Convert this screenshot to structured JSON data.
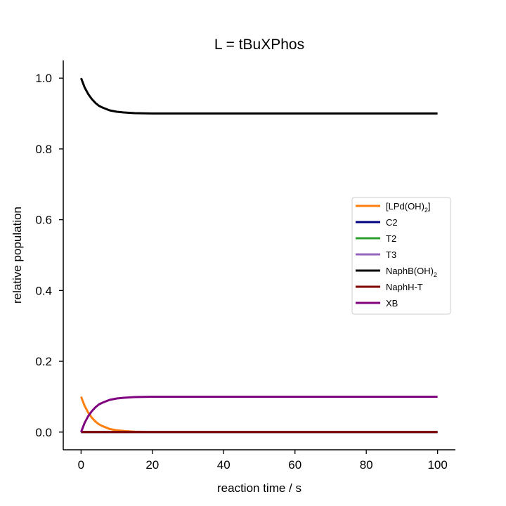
{
  "chart_data": {
    "type": "line",
    "title": "L = tBuXPhos",
    "xlabel": "reaction time / s",
    "ylabel": "relative population",
    "xlim": [
      -5,
      105
    ],
    "ylim": [
      -0.05,
      1.05
    ],
    "xticks": [
      0,
      20,
      40,
      60,
      80,
      100
    ],
    "xtick_labels": [
      "0",
      "20",
      "40",
      "60",
      "80",
      "100"
    ],
    "yticks": [
      0.0,
      0.2,
      0.4,
      0.6,
      0.8,
      1.0
    ],
    "ytick_labels": [
      "0.0",
      "0.2",
      "0.4",
      "0.6",
      "0.8",
      "1.0"
    ],
    "grid": false,
    "legend_position": "center-right",
    "x": [
      0,
      1,
      2,
      3,
      4,
      5,
      6,
      8,
      10,
      12,
      15,
      20,
      30,
      40,
      50,
      60,
      70,
      80,
      90,
      100
    ],
    "series": [
      {
        "name": "[LPd(OH)2]",
        "legend": {
          "base": "[LPd(OH)",
          "sub": "2",
          "after": "]"
        },
        "color": "#ff7f0e",
        "values": [
          0.1,
          0.074,
          0.055,
          0.041,
          0.03,
          0.022,
          0.017,
          0.009,
          0.005,
          0.003,
          0.001,
          0.0,
          0.0,
          0.0,
          0.0,
          0.0,
          0.0,
          0.0,
          0.0,
          0.0
        ]
      },
      {
        "name": "C2",
        "legend": {
          "base": "C2",
          "sub": "",
          "after": ""
        },
        "color": "#000080",
        "values": [
          0,
          0,
          0,
          0,
          0,
          0,
          0,
          0,
          0,
          0,
          0,
          0,
          0,
          0,
          0,
          0,
          0,
          0,
          0,
          0
        ]
      },
      {
        "name": "T2",
        "legend": {
          "base": "T2",
          "sub": "",
          "after": ""
        },
        "color": "#2ca02c",
        "values": [
          0,
          0,
          0,
          0,
          0,
          0,
          0,
          0,
          0,
          0,
          0,
          0,
          0,
          0,
          0,
          0,
          0,
          0,
          0,
          0
        ]
      },
      {
        "name": "T3",
        "legend": {
          "base": "T3",
          "sub": "",
          "after": ""
        },
        "color": "#9467bd",
        "values": [
          0,
          0,
          0,
          0,
          0,
          0,
          0,
          0,
          0,
          0,
          0,
          0,
          0,
          0,
          0,
          0,
          0,
          0,
          0,
          0
        ]
      },
      {
        "name": "NaphB(OH)2",
        "legend": {
          "base": "NaphB(OH)",
          "sub": "2",
          "after": ""
        },
        "color": "#000000",
        "values": [
          1.0,
          0.974,
          0.955,
          0.941,
          0.93,
          0.922,
          0.917,
          0.909,
          0.905,
          0.903,
          0.901,
          0.9,
          0.9,
          0.9,
          0.9,
          0.9,
          0.9,
          0.9,
          0.9,
          0.9
        ]
      },
      {
        "name": "NaphH-T",
        "legend": {
          "base": "NaphH-T",
          "sub": "",
          "after": ""
        },
        "color": "#800000",
        "values": [
          0,
          0,
          0,
          0,
          0,
          0,
          0,
          0,
          0,
          0,
          0,
          0,
          0,
          0,
          0,
          0,
          0,
          0,
          0,
          0
        ]
      },
      {
        "name": "XB",
        "legend": {
          "base": "XB",
          "sub": "",
          "after": ""
        },
        "color": "#800080",
        "values": [
          0.0,
          0.026,
          0.045,
          0.059,
          0.07,
          0.078,
          0.083,
          0.091,
          0.095,
          0.097,
          0.099,
          0.1,
          0.1,
          0.1,
          0.1,
          0.1,
          0.1,
          0.1,
          0.1,
          0.1
        ]
      }
    ]
  }
}
